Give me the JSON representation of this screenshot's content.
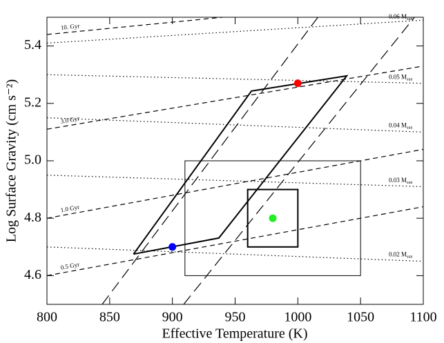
{
  "chart_data": {
    "type": "line",
    "xlabel": "Effective Temperature (K)",
    "ylabel": "Log Surface Gravity (cm s⁻²)",
    "xlim": [
      800,
      1100
    ],
    "ylim": [
      4.5,
      5.5
    ],
    "xticks": [
      800,
      850,
      900,
      950,
      1000,
      1050,
      1100
    ],
    "yticks": [
      4.6,
      4.8,
      {
        "value": 5,
        "label": "5.0"
      },
      5.2,
      5.4
    ],
    "mass_unit_subscript": "sun",
    "series": [
      {
        "name": "10. Gyr",
        "style": "dashed",
        "x": [
          800,
          940
        ],
        "values": [
          5.44,
          5.5
        ]
      },
      {
        "name": "3.0 Gyr",
        "style": "dashed",
        "x": [
          800,
          1100
        ],
        "values": [
          5.11,
          5.33
        ]
      },
      {
        "name": "1.0 Gyr",
        "style": "dashed",
        "x": [
          800,
          1100
        ],
        "values": [
          4.8,
          5.04
        ]
      },
      {
        "name": "0.5 Gyr",
        "style": "dashed",
        "x": [
          800,
          1100
        ],
        "values": [
          4.6,
          4.84
        ]
      },
      {
        "name": "0.06 M",
        "style": "dotted",
        "x": [
          800,
          1100
        ],
        "values": [
          5.41,
          5.49
        ]
      },
      {
        "name": "0.05 M",
        "style": "dotted",
        "x": [
          800,
          1100
        ],
        "values": [
          5.3,
          5.27
        ]
      },
      {
        "name": "0.04 M",
        "style": "dotted",
        "x": [
          800,
          1100
        ],
        "values": [
          5.15,
          5.1
        ]
      },
      {
        "name": "0.03 M",
        "style": "dotted",
        "x": [
          800,
          1100
        ],
        "values": [
          4.95,
          4.91
        ]
      },
      {
        "name": "0.02 M",
        "style": "dotted",
        "x": [
          800,
          1100
        ],
        "values": [
          4.7,
          4.65
        ]
      },
      {
        "style": "longdash",
        "x": [
          844,
          1016
        ],
        "values": [
          4.5,
          5.5
        ]
      },
      {
        "style": "longdash",
        "x": [
          909,
          1093
        ],
        "values": [
          4.5,
          5.5
        ]
      },
      {
        "style": "solid",
        "x": [
          869,
          963,
          1039,
          937,
          869
        ],
        "values": [
          4.675,
          5.243,
          5.296,
          4.731,
          4.675
        ]
      }
    ],
    "boxes": [
      {
        "x": [
          910,
          1050
        ],
        "y": [
          4.6,
          5.0
        ],
        "width": 1
      },
      {
        "x": [
          960,
          1000
        ],
        "y": [
          4.7,
          4.9
        ],
        "width": 2
      }
    ],
    "points": [
      {
        "x": 1000,
        "value": 5.27,
        "color": "#ff0000"
      },
      {
        "x": 900,
        "value": 4.7,
        "color": "#0000ff"
      },
      {
        "x": 980,
        "value": 4.8,
        "color": "#22ee22"
      }
    ]
  }
}
